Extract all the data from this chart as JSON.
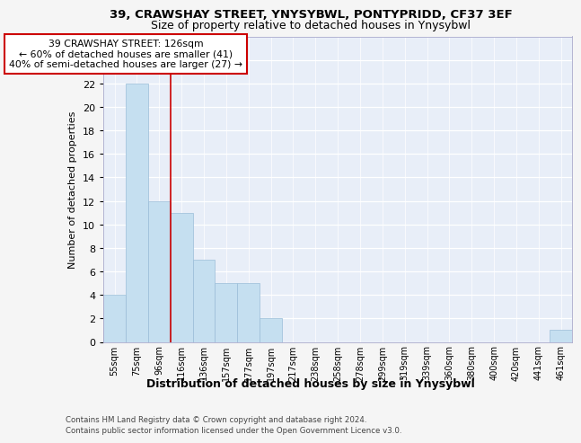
{
  "title1": "39, CRAWSHAY STREET, YNYSYBWL, PONTYPRIDD, CF37 3EF",
  "title2": "Size of property relative to detached houses in Ynysybwl",
  "xlabel": "Distribution of detached houses by size in Ynysybwl",
  "ylabel": "Number of detached properties",
  "categories": [
    "55sqm",
    "75sqm",
    "96sqm",
    "116sqm",
    "136sqm",
    "157sqm",
    "177sqm",
    "197sqm",
    "217sqm",
    "238sqm",
    "258sqm",
    "278sqm",
    "299sqm",
    "319sqm",
    "339sqm",
    "360sqm",
    "380sqm",
    "400sqm",
    "420sqm",
    "441sqm",
    "461sqm"
  ],
  "values": [
    4,
    22,
    12,
    11,
    7,
    5,
    5,
    2,
    0,
    0,
    0,
    0,
    0,
    0,
    0,
    0,
    0,
    0,
    0,
    0,
    1
  ],
  "bar_color": "#c5dff0",
  "bar_edge_color": "#9abdd8",
  "vline_x": 2.5,
  "vline_color": "#cc0000",
  "annotation_line1": "39 CRAWSHAY STREET: 126sqm",
  "annotation_line2": "← 60% of detached houses are smaller (41)",
  "annotation_line3": "40% of semi-detached houses are larger (27) →",
  "annotation_box_edgecolor": "#cc0000",
  "ylim": [
    0,
    26
  ],
  "yticks": [
    0,
    2,
    4,
    6,
    8,
    10,
    12,
    14,
    16,
    18,
    20,
    22,
    24,
    26
  ],
  "background_color": "#e8eef8",
  "grid_color": "#ffffff",
  "fig_bg_color": "#f5f5f5",
  "footer_line1": "Contains HM Land Registry data © Crown copyright and database right 2024.",
  "footer_line2": "Contains public sector information licensed under the Open Government Licence v3.0."
}
